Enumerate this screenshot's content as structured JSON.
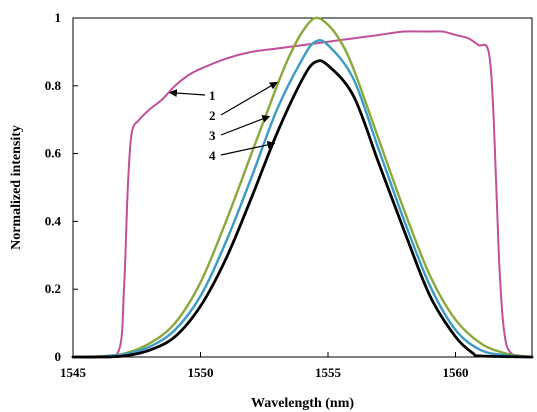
{
  "chart_data": {
    "type": "line",
    "xlabel": "Wavelength (nm)",
    "ylabel": "Normalized intensity",
    "xlim": [
      1545,
      1563
    ],
    "ylim": [
      0,
      1
    ],
    "grid": false,
    "legend": "none",
    "x_ticks": [
      1545,
      1550,
      1555,
      1560
    ],
    "x_tick_labels": [
      "1545",
      "1550",
      "1555",
      "1560"
    ],
    "y_ticks": [
      0,
      0.2,
      0.4,
      0.6,
      0.8,
      1
    ],
    "y_tick_labels": [
      "0",
      "0.2",
      "0.4",
      "0.6",
      "0.8",
      "1"
    ],
    "colors": {
      "series_1": "#c0509a",
      "series_2": "#8aa83c",
      "series_3": "#3a9cc4",
      "series_4": "#000000",
      "axis": "#000000"
    },
    "series": [
      {
        "name": "1",
        "points": [
          [
            1545,
            0
          ],
          [
            1546,
            0
          ],
          [
            1546.8,
            0.02
          ],
          [
            1547.0,
            0.2
          ],
          [
            1547.15,
            0.5
          ],
          [
            1547.3,
            0.66
          ],
          [
            1547.6,
            0.7
          ],
          [
            1548.0,
            0.73
          ],
          [
            1548.5,
            0.76
          ],
          [
            1549.0,
            0.8
          ],
          [
            1549.5,
            0.83
          ],
          [
            1550.0,
            0.85
          ],
          [
            1551.0,
            0.88
          ],
          [
            1552.0,
            0.9
          ],
          [
            1553.0,
            0.91
          ],
          [
            1554.0,
            0.92
          ],
          [
            1555.0,
            0.93
          ],
          [
            1556.0,
            0.94
          ],
          [
            1557.0,
            0.95
          ],
          [
            1558.0,
            0.96
          ],
          [
            1559.0,
            0.96
          ],
          [
            1559.5,
            0.96
          ],
          [
            1560.0,
            0.95
          ],
          [
            1560.5,
            0.94
          ],
          [
            1560.9,
            0.92
          ],
          [
            1561.3,
            0.9
          ],
          [
            1561.5,
            0.7
          ],
          [
            1561.7,
            0.3
          ],
          [
            1561.9,
            0.08
          ],
          [
            1562.2,
            0.01
          ],
          [
            1563.0,
            0
          ]
        ]
      },
      {
        "name": "2",
        "points": [
          [
            1545,
            0
          ],
          [
            1546.0,
            0.002
          ],
          [
            1547.0,
            0.01
          ],
          [
            1548.0,
            0.04
          ],
          [
            1549.0,
            0.1
          ],
          [
            1550.0,
            0.22
          ],
          [
            1551.0,
            0.4
          ],
          [
            1552.0,
            0.6
          ],
          [
            1553.0,
            0.8
          ],
          [
            1553.5,
            0.89
          ],
          [
            1554.0,
            0.96
          ],
          [
            1554.5,
            1.0
          ],
          [
            1555.0,
            0.98
          ],
          [
            1555.5,
            0.93
          ],
          [
            1556.0,
            0.85
          ],
          [
            1557.0,
            0.64
          ],
          [
            1558.0,
            0.43
          ],
          [
            1559.0,
            0.24
          ],
          [
            1560.0,
            0.11
          ],
          [
            1561.0,
            0.04
          ],
          [
            1562.0,
            0.01
          ],
          [
            1563.0,
            0
          ]
        ]
      },
      {
        "name": "3",
        "points": [
          [
            1545,
            0
          ],
          [
            1546.0,
            0.001
          ],
          [
            1547.0,
            0.008
          ],
          [
            1548.0,
            0.03
          ],
          [
            1549.0,
            0.08
          ],
          [
            1550.0,
            0.18
          ],
          [
            1551.0,
            0.34
          ],
          [
            1552.0,
            0.53
          ],
          [
            1553.0,
            0.73
          ],
          [
            1554.0,
            0.88
          ],
          [
            1554.5,
            0.93
          ],
          [
            1555.0,
            0.92
          ],
          [
            1556.0,
            0.82
          ],
          [
            1557.0,
            0.61
          ],
          [
            1558.0,
            0.4
          ],
          [
            1559.0,
            0.21
          ],
          [
            1560.0,
            0.08
          ],
          [
            1561.0,
            0.02
          ],
          [
            1562.0,
            0.005
          ],
          [
            1563.0,
            0
          ]
        ]
      },
      {
        "name": "4",
        "points": [
          [
            1545,
            0
          ],
          [
            1546.0,
            0
          ],
          [
            1547.0,
            0.003
          ],
          [
            1548.0,
            0.02
          ],
          [
            1549.0,
            0.06
          ],
          [
            1550.0,
            0.15
          ],
          [
            1551.0,
            0.29
          ],
          [
            1552.0,
            0.47
          ],
          [
            1553.0,
            0.66
          ],
          [
            1554.0,
            0.82
          ],
          [
            1554.5,
            0.87
          ],
          [
            1555.0,
            0.86
          ],
          [
            1556.0,
            0.77
          ],
          [
            1557.0,
            0.57
          ],
          [
            1558.0,
            0.37
          ],
          [
            1559.0,
            0.18
          ],
          [
            1560.0,
            0.06
          ],
          [
            1560.7,
            0.01
          ],
          [
            1561.0,
            0.003
          ],
          [
            1563.0,
            0
          ]
        ]
      }
    ],
    "annotations": [
      {
        "text": "1",
        "series": "1",
        "arrow_to": [
          1548.8,
          0.78
        ]
      },
      {
        "text": "2",
        "series": "2",
        "arrow_to": [
          1553.0,
          0.81
        ]
      },
      {
        "text": "3",
        "series": "3",
        "arrow_to": [
          1552.7,
          0.71
        ]
      },
      {
        "text": "4",
        "series": "4",
        "arrow_to": [
          1552.9,
          0.63
        ]
      }
    ]
  }
}
